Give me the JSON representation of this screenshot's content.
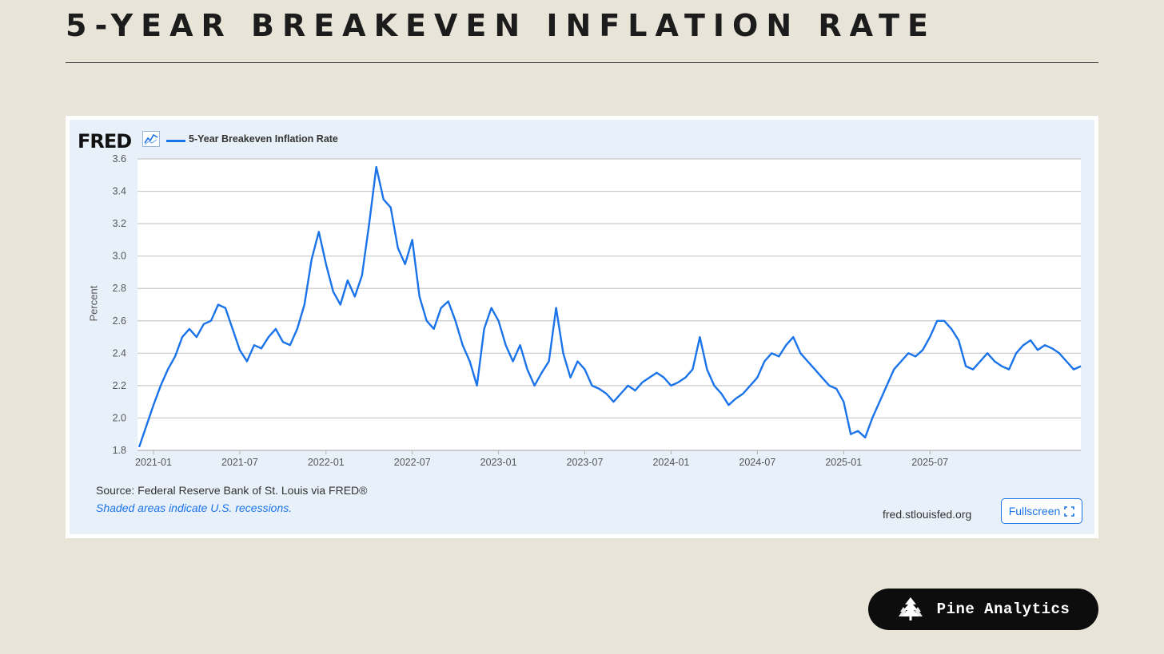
{
  "header": {
    "title": "5-YEAR BREAKEVEN INFLATION RATE"
  },
  "fred": {
    "logo": "FRED",
    "source": "Source: Federal Reserve Bank of St. Louis via FRED®",
    "note": "Shaded areas indicate U.S. recessions.",
    "site": "fred.stlouisfed.org",
    "fullscreen_label": "Fullscreen",
    "fullscreen_icon": "expand-icon"
  },
  "brand": {
    "name": "Pine Analytics",
    "icon": "pine-tree-icon"
  },
  "colors": {
    "line": "#1a73e8",
    "background": "#e8e4d8",
    "panel": "#e8f1fa"
  },
  "chart_data": {
    "type": "line",
    "title": "5-Year Breakeven Inflation Rate",
    "xlabel": "",
    "ylabel": "Percent",
    "ylim": [
      1.8,
      3.6
    ],
    "yticks": [
      "1.8",
      "2.0",
      "2.2",
      "2.4",
      "2.6",
      "2.8",
      "3.0",
      "3.2",
      "3.4",
      "3.6"
    ],
    "xticks": [
      "2021-01",
      "2021-07",
      "2022-01",
      "2022-07",
      "2023-01",
      "2023-07",
      "2024-01",
      "2024-07",
      "2025-01",
      "2025-07"
    ],
    "grid": true,
    "legend": "top-left",
    "series": [
      {
        "name": "5-Year Breakeven Inflation Rate",
        "x_start": "2020-12",
        "x_step_months": 0.5,
        "values": [
          1.82,
          1.95,
          2.08,
          2.2,
          2.3,
          2.38,
          2.5,
          2.55,
          2.5,
          2.58,
          2.6,
          2.7,
          2.68,
          2.55,
          2.42,
          2.35,
          2.45,
          2.43,
          2.5,
          2.55,
          2.47,
          2.45,
          2.55,
          2.7,
          2.98,
          3.15,
          2.95,
          2.78,
          2.7,
          2.85,
          2.75,
          2.88,
          3.2,
          3.55,
          3.35,
          3.3,
          3.05,
          2.95,
          3.1,
          2.75,
          2.6,
          2.55,
          2.68,
          2.72,
          2.6,
          2.45,
          2.35,
          2.2,
          2.55,
          2.68,
          2.6,
          2.45,
          2.35,
          2.45,
          2.3,
          2.2,
          2.28,
          2.35,
          2.68,
          2.4,
          2.25,
          2.35,
          2.3,
          2.2,
          2.18,
          2.15,
          2.1,
          2.15,
          2.2,
          2.17,
          2.22,
          2.25,
          2.28,
          2.25,
          2.2,
          2.22,
          2.25,
          2.3,
          2.5,
          2.3,
          2.2,
          2.15,
          2.08,
          2.12,
          2.15,
          2.2,
          2.25,
          2.35,
          2.4,
          2.38,
          2.45,
          2.5,
          2.4,
          2.35,
          2.3,
          2.25,
          2.2,
          2.18,
          2.1,
          1.9,
          1.92,
          1.88,
          2.0,
          2.1,
          2.2,
          2.3,
          2.35,
          2.4,
          2.38,
          2.42,
          2.5,
          2.6,
          2.6,
          2.55,
          2.48,
          2.32,
          2.3,
          2.35,
          2.4,
          2.35,
          2.32,
          2.3,
          2.4,
          2.45,
          2.48,
          2.42,
          2.45,
          2.43,
          2.4,
          2.35,
          2.3,
          2.32
        ]
      }
    ]
  }
}
